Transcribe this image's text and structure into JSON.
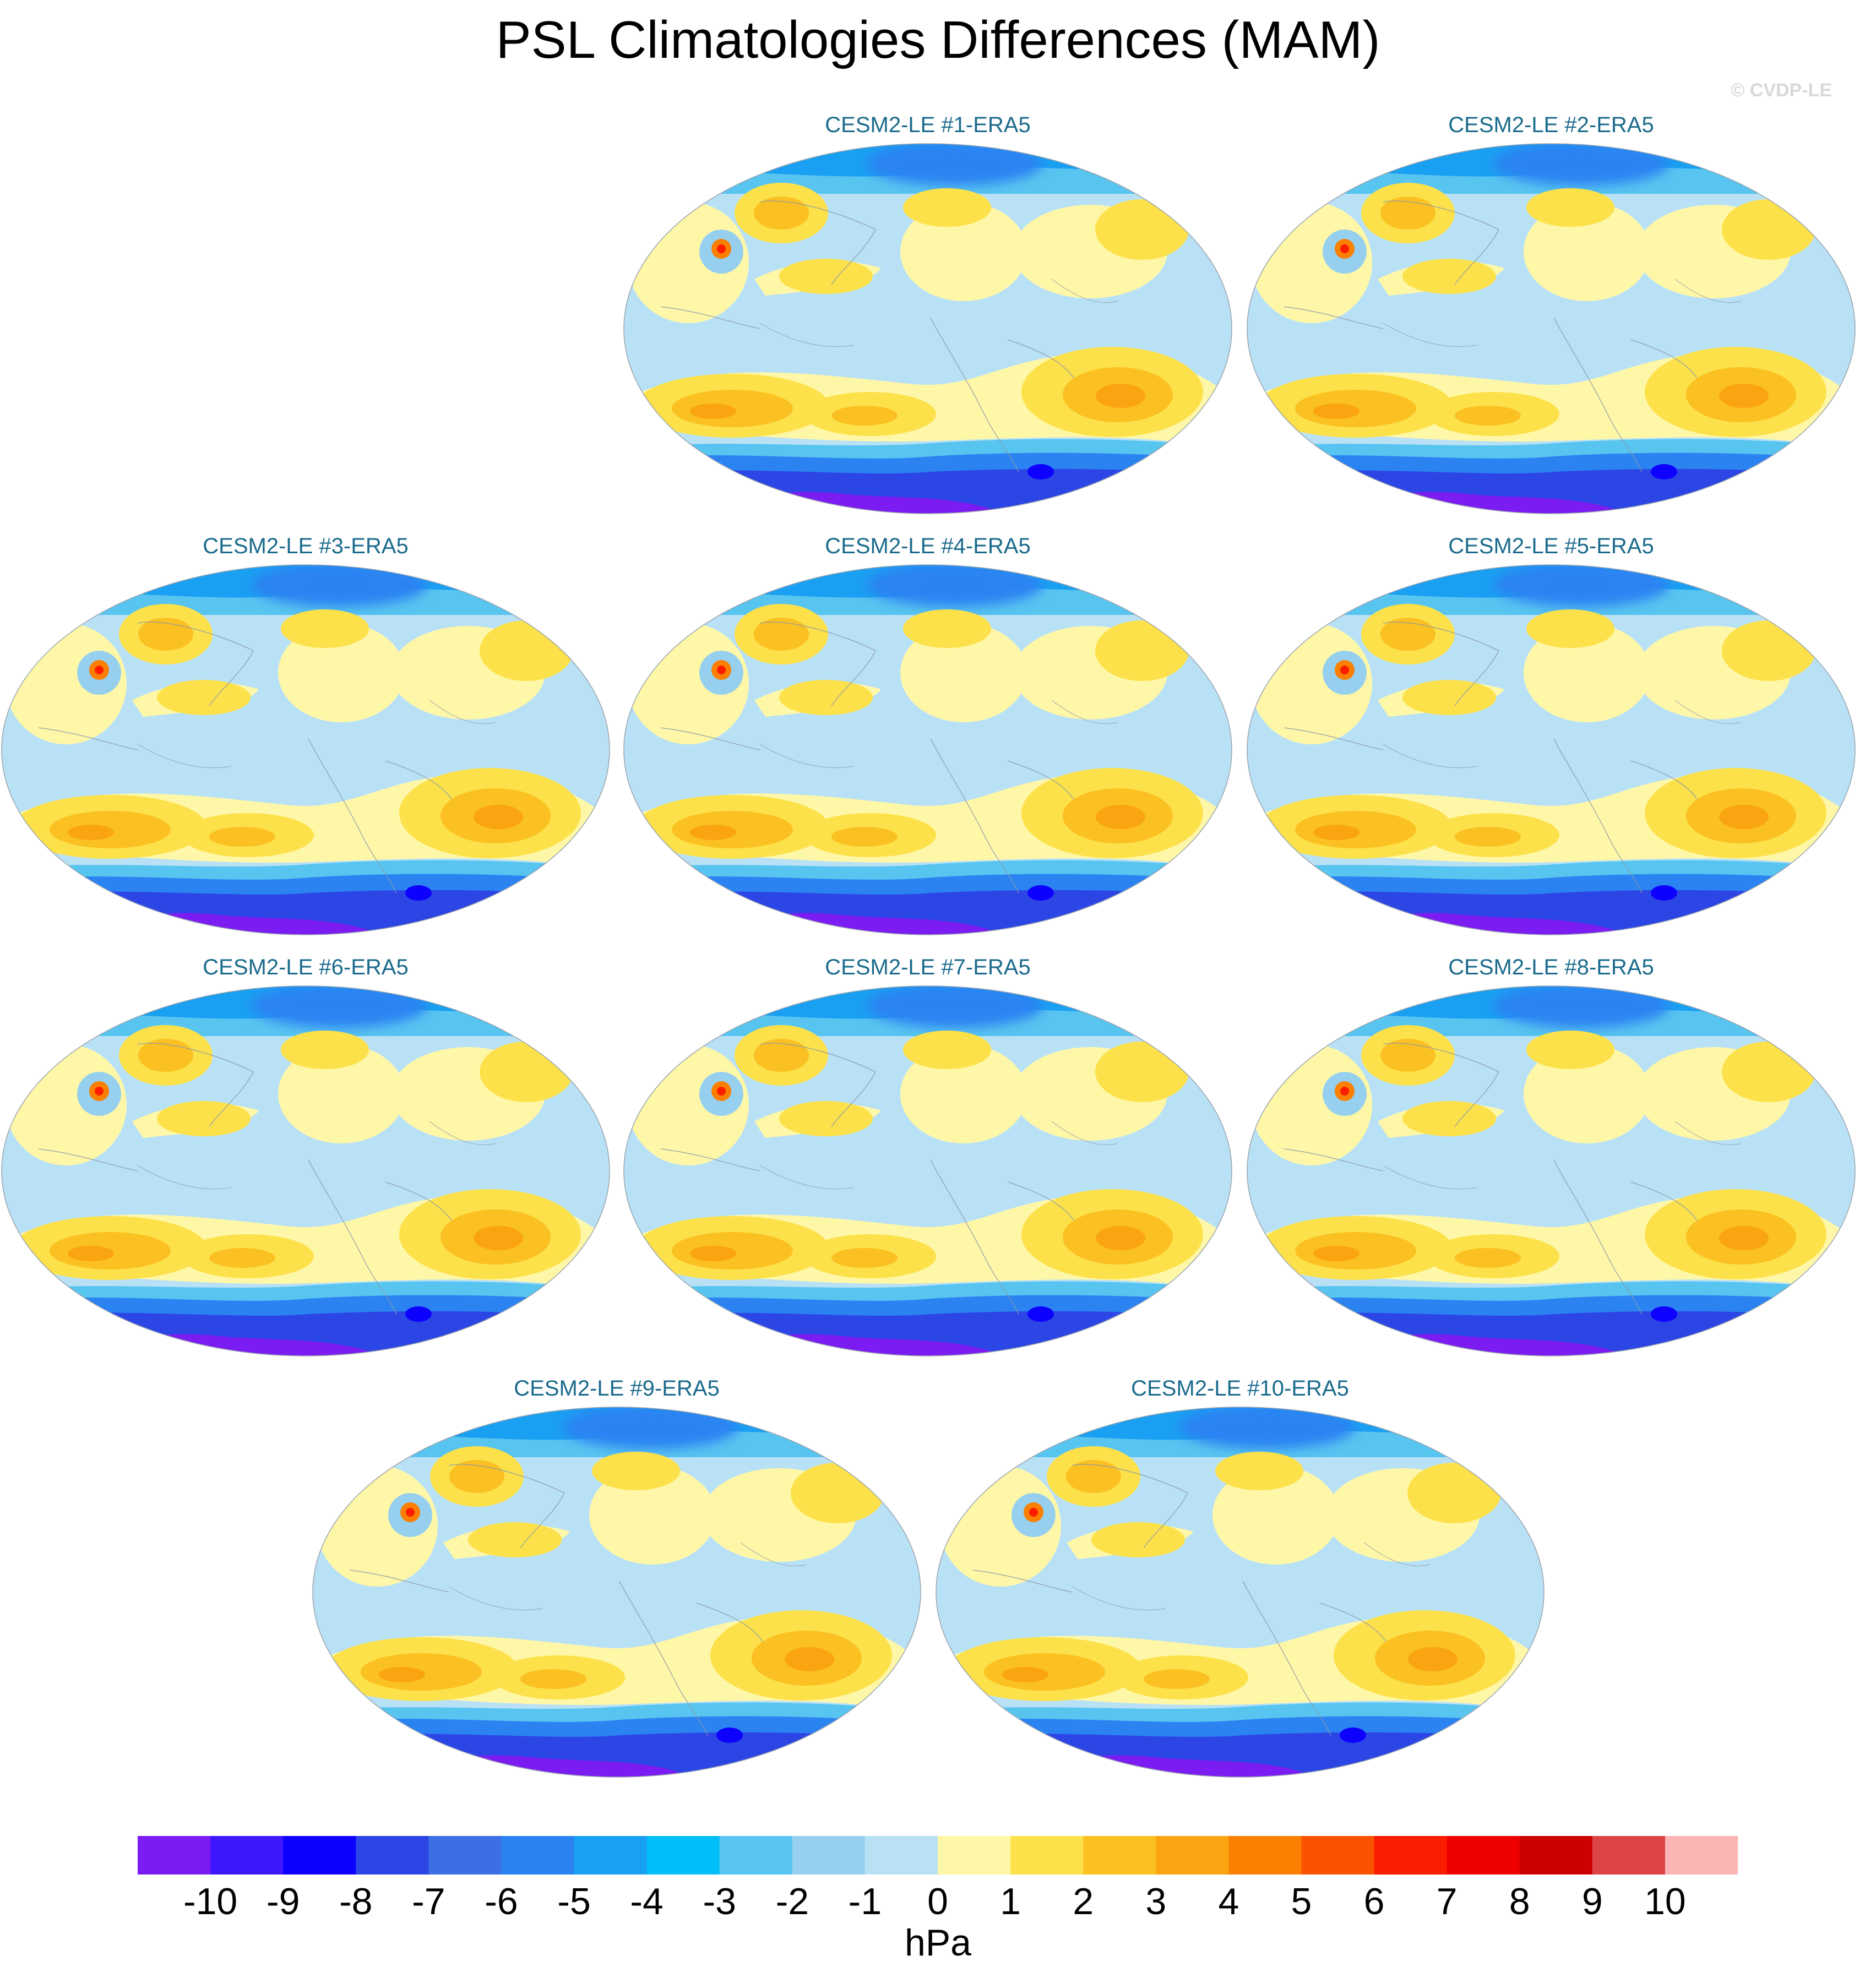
{
  "title": "PSL Climatologies Differences (MAM)",
  "watermark": "© CVDP-LE",
  "panels": [
    {
      "title": "CESM2-LE #1-ERA5"
    },
    {
      "title": "CESM2-LE #2-ERA5"
    },
    {
      "title": "CESM2-LE #3-ERA5"
    },
    {
      "title": "CESM2-LE #4-ERA5"
    },
    {
      "title": "CESM2-LE #5-ERA5"
    },
    {
      "title": "CESM2-LE #6-ERA5"
    },
    {
      "title": "CESM2-LE #7-ERA5"
    },
    {
      "title": "CESM2-LE #8-ERA5"
    },
    {
      "title": "CESM2-LE #9-ERA5"
    },
    {
      "title": "CESM2-LE #10-ERA5"
    }
  ],
  "colorbar": {
    "units": "hPa",
    "tick_labels": [
      "-10",
      "-9",
      "-8",
      "-7",
      "-6",
      "-5",
      "-4",
      "-3",
      "-2",
      "-1",
      "0",
      "1",
      "2",
      "3",
      "4",
      "5",
      "6",
      "7",
      "8",
      "9",
      "10"
    ],
    "colors": [
      "#7b1cf2",
      "#3f17ff",
      "#0d00ff",
      "#2c46e6",
      "#3d6ee6",
      "#2b83f2",
      "#1aa0f2",
      "#00bef7",
      "#58c4f0",
      "#96d0ee",
      "#b9e1f6",
      "#fff7a8",
      "#fce14a",
      "#fbc022",
      "#f9a410",
      "#fb7f00",
      "#fb5200",
      "#fb1d00",
      "#ee0000",
      "#cc0000",
      "#dd4444",
      "#fbb4b4"
    ]
  }
}
